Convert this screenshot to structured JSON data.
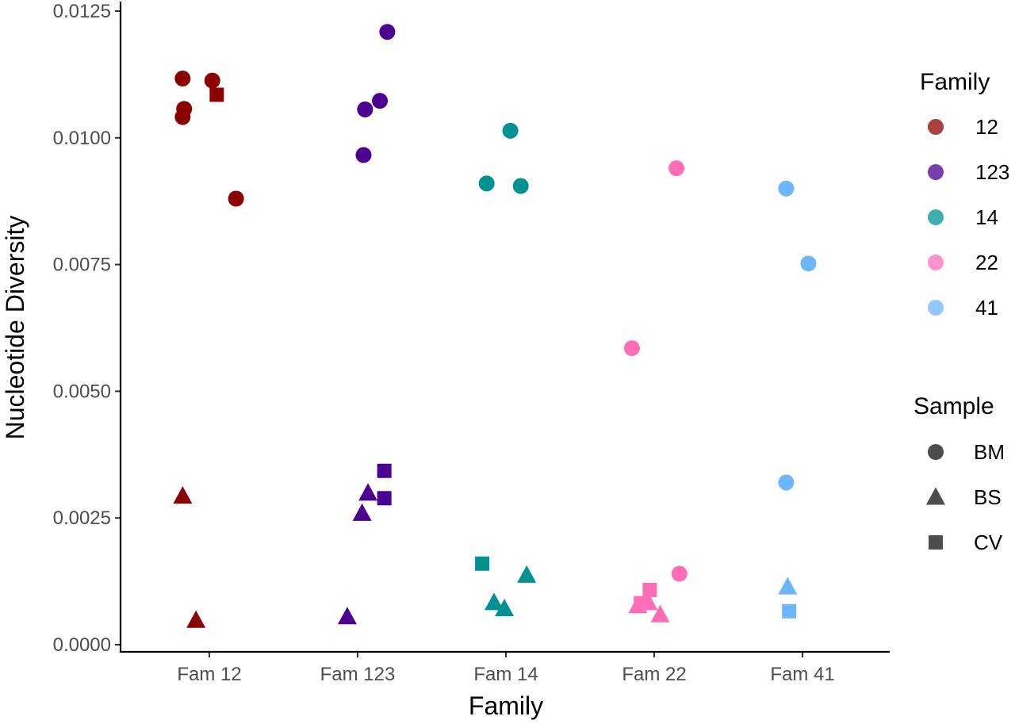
{
  "chart_data": {
    "type": "scatter",
    "xlabel": "Family",
    "ylabel": "Nucleotide Diversity",
    "categories": [
      "Fam 12",
      "Fam 123",
      "Fam 14",
      "Fam 22",
      "Fam 41"
    ],
    "ylim": [
      0,
      0.0125
    ],
    "yticks": [
      "0.0000",
      "0.0025",
      "0.0050",
      "0.0075",
      "0.0100",
      "0.0125"
    ],
    "ytick_values": [
      0,
      0.0025,
      0.005,
      0.0075,
      0.01,
      0.0125
    ],
    "grid": false,
    "legend_placement": "right",
    "legend_family": {
      "title": "Family",
      "entries": [
        {
          "label": "12",
          "color": "#8B0000"
        },
        {
          "label": "123",
          "color": "#4B0092"
        },
        {
          "label": "14",
          "color": "#009292"
        },
        {
          "label": "22",
          "color": "#FF6DB6"
        },
        {
          "label": "41",
          "color": "#6DB6FF"
        }
      ]
    },
    "legend_sample": {
      "title": "Sample",
      "entries": [
        {
          "label": "BM",
          "shape": "circle"
        },
        {
          "label": "BS",
          "shape": "triangle"
        },
        {
          "label": "CV",
          "shape": "square"
        }
      ]
    },
    "points": [
      {
        "family": "12",
        "category": "Fam 12",
        "jitter": -0.18,
        "y": 0.01117,
        "sample": "BM"
      },
      {
        "family": "12",
        "category": "Fam 12",
        "jitter": 0.02,
        "y": 0.01113,
        "sample": "BM"
      },
      {
        "family": "12",
        "category": "Fam 12",
        "jitter": -0.17,
        "y": 0.01057,
        "sample": "BM"
      },
      {
        "family": "12",
        "category": "Fam 12",
        "jitter": -0.18,
        "y": 0.01041,
        "sample": "BM"
      },
      {
        "family": "12",
        "category": "Fam 12",
        "jitter": 0.18,
        "y": 0.0088,
        "sample": "BM"
      },
      {
        "family": "12",
        "category": "Fam 12",
        "jitter": 0.05,
        "y": 0.01085,
        "sample": "CV"
      },
      {
        "family": "12",
        "category": "Fam 12",
        "jitter": -0.18,
        "y": 0.00293,
        "sample": "BS"
      },
      {
        "family": "12",
        "category": "Fam 12",
        "jitter": -0.09,
        "y": 0.00048,
        "sample": "BS"
      },
      {
        "family": "123",
        "category": "Fam 123",
        "jitter": 0.2,
        "y": 0.01209,
        "sample": "BM"
      },
      {
        "family": "123",
        "category": "Fam 123",
        "jitter": 0.15,
        "y": 0.01073,
        "sample": "BM"
      },
      {
        "family": "123",
        "category": "Fam 123",
        "jitter": 0.05,
        "y": 0.01056,
        "sample": "BM"
      },
      {
        "family": "123",
        "category": "Fam 123",
        "jitter": 0.04,
        "y": 0.00966,
        "sample": "BM"
      },
      {
        "family": "123",
        "category": "Fam 123",
        "jitter": 0.18,
        "y": 0.00343,
        "sample": "CV"
      },
      {
        "family": "123",
        "category": "Fam 123",
        "jitter": 0.18,
        "y": 0.00289,
        "sample": "CV"
      },
      {
        "family": "123",
        "category": "Fam 123",
        "jitter": 0.07,
        "y": 0.00299,
        "sample": "BS"
      },
      {
        "family": "123",
        "category": "Fam 123",
        "jitter": 0.03,
        "y": 0.00259,
        "sample": "BS"
      },
      {
        "family": "123",
        "category": "Fam 123",
        "jitter": -0.07,
        "y": 0.00055,
        "sample": "BS"
      },
      {
        "family": "14",
        "category": "Fam 14",
        "jitter": 0.03,
        "y": 0.01014,
        "sample": "BM"
      },
      {
        "family": "14",
        "category": "Fam 14",
        "jitter": -0.13,
        "y": 0.0091,
        "sample": "BM"
      },
      {
        "family": "14",
        "category": "Fam 14",
        "jitter": 0.1,
        "y": 0.00905,
        "sample": "BM"
      },
      {
        "family": "14",
        "category": "Fam 14",
        "jitter": -0.16,
        "y": 0.0016,
        "sample": "CV"
      },
      {
        "family": "14",
        "category": "Fam 14",
        "jitter": 0.14,
        "y": 0.00137,
        "sample": "BS"
      },
      {
        "family": "14",
        "category": "Fam 14",
        "jitter": -0.08,
        "y": 0.00083,
        "sample": "BS"
      },
      {
        "family": "14",
        "category": "Fam 14",
        "jitter": -0.01,
        "y": 0.00071,
        "sample": "BS"
      },
      {
        "family": "22",
        "category": "Fam 22",
        "jitter": 0.15,
        "y": 0.0094,
        "sample": "BM"
      },
      {
        "family": "22",
        "category": "Fam 22",
        "jitter": -0.15,
        "y": 0.00585,
        "sample": "BM"
      },
      {
        "family": "22",
        "category": "Fam 22",
        "jitter": 0.17,
        "y": 0.0014,
        "sample": "BM"
      },
      {
        "family": "22",
        "category": "Fam 22",
        "jitter": -0.03,
        "y": 0.00108,
        "sample": "CV"
      },
      {
        "family": "22",
        "category": "Fam 22",
        "jitter": -0.09,
        "y": 0.00082,
        "sample": "CV"
      },
      {
        "family": "22",
        "category": "Fam 22",
        "jitter": -0.11,
        "y": 0.00077,
        "sample": "BS"
      },
      {
        "family": "22",
        "category": "Fam 22",
        "jitter": -0.04,
        "y": 0.00083,
        "sample": "BS"
      },
      {
        "family": "22",
        "category": "Fam 22",
        "jitter": 0.04,
        "y": 0.00059,
        "sample": "BS"
      },
      {
        "family": "41",
        "category": "Fam 41",
        "jitter": -0.11,
        "y": 0.009,
        "sample": "BM"
      },
      {
        "family": "41",
        "category": "Fam 41",
        "jitter": 0.04,
        "y": 0.00752,
        "sample": "BM"
      },
      {
        "family": "41",
        "category": "Fam 41",
        "jitter": -0.11,
        "y": 0.0032,
        "sample": "BM"
      },
      {
        "family": "41",
        "category": "Fam 41",
        "jitter": -0.1,
        "y": 0.00114,
        "sample": "BS"
      },
      {
        "family": "41",
        "category": "Fam 41",
        "jitter": -0.09,
        "y": 0.00066,
        "sample": "CV"
      }
    ]
  }
}
